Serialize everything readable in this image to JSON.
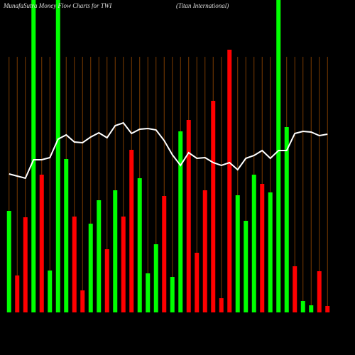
{
  "chart_data": {
    "type": "bar",
    "title": "MunafaSutra Money Flow Charts for TWI",
    "subtitle": "(Titan International)",
    "ylim": [
      0,
      440
    ],
    "grid": true,
    "grid_color": "#7a3b00",
    "values": [
      143,
      52,
      134,
      440,
      194,
      59,
      440,
      216,
      135,
      31,
      125,
      158,
      89,
      172,
      135,
      229,
      189,
      55,
      96,
      164,
      50,
      255,
      271,
      84,
      172,
      298,
      20,
      370,
      165,
      129,
      194,
      181,
      169,
      440,
      261,
      65,
      16,
      10,
      58,
      9
    ],
    "colors": [
      "#00ff00",
      "#ff0000",
      "#ff0000",
      "#00ff00",
      "#ff0000",
      "#00ff00",
      "#00ff00",
      "#00ff00",
      "#ff0000",
      "#ff0000",
      "#00ff00",
      "#00ff00",
      "#ff0000",
      "#00ff00",
      "#ff0000",
      "#ff0000",
      "#00ff00",
      "#00ff00",
      "#00ff00",
      "#ff0000",
      "#00ff00",
      "#00ff00",
      "#ff0000",
      "#ff0000",
      "#ff0000",
      "#ff0000",
      "#ff0000",
      "#ff0000",
      "#00ff00",
      "#00ff00",
      "#00ff00",
      "#ff0000",
      "#00ff00",
      "#00ff00",
      "#00ff00",
      "#ff0000",
      "#00ff00",
      "#00ff00",
      "#ff0000",
      "#ff0000"
    ],
    "line": {
      "color": "#ffffff",
      "values": [
        195,
        192,
        189,
        215,
        215,
        218,
        244,
        250,
        240,
        239,
        247,
        253,
        246,
        263,
        267,
        252,
        258,
        259,
        257,
        242,
        222,
        207,
        225,
        217,
        218,
        211,
        207,
        211,
        201,
        217,
        221,
        228,
        217,
        228,
        228,
        252,
        255,
        254,
        249,
        251
      ]
    }
  }
}
